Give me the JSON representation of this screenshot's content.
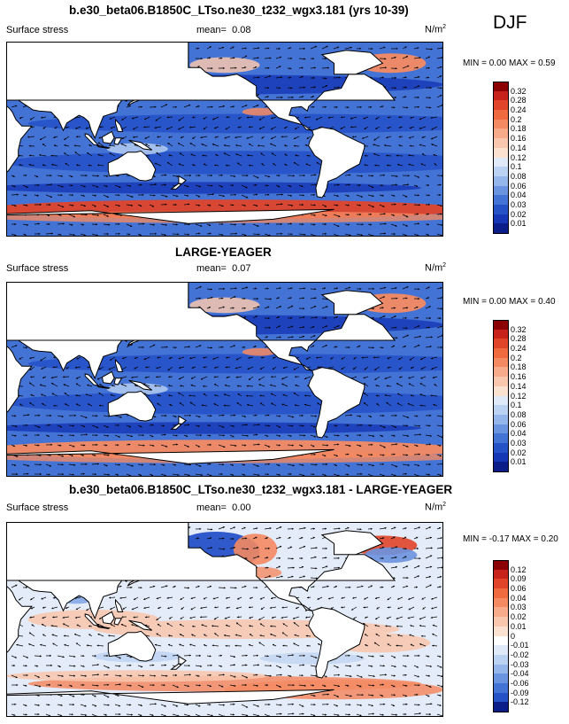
{
  "season": "DJF",
  "unit_base": "N/m",
  "unit_sup": "2",
  "chart_data": [
    {
      "type": "heatmap",
      "title": "b.e30_beta06.B1850C_LTso.ne30_t232_wgx3.181 (yrs 10-39)",
      "variable": "Surface stress",
      "mean_label": "mean=",
      "mean": "0.08",
      "min_label": "MIN =",
      "min": "0.00",
      "max_label": "MAX =",
      "max": "0.59",
      "levels": [
        "0.32",
        "0.28",
        "0.24",
        "0.2",
        "0.18",
        "0.16",
        "0.14",
        "0.12",
        "0.1",
        "0.08",
        "0.06",
        "0.04",
        "0.03",
        "0.02",
        "0.01"
      ],
      "colors": [
        "#8b0000",
        "#c8231a",
        "#e0452a",
        "#ef6a3e",
        "#f48a62",
        "#f7ab8a",
        "#f9c7ae",
        "#fbe2d0",
        "#dfe9f8",
        "#bcd2f2",
        "#94b6ea",
        "#6a94df",
        "#4473d6",
        "#2652c8",
        "#1536b5",
        "#0a1d88"
      ],
      "field": "mean_climatology"
    },
    {
      "type": "heatmap",
      "title": "LARGE-YEAGER",
      "variable": "Surface stress",
      "mean_label": "mean=",
      "mean": "0.07",
      "min_label": "MIN =",
      "min": "0.00",
      "max_label": "MAX =",
      "max": "0.40",
      "levels": [
        "0.32",
        "0.28",
        "0.24",
        "0.2",
        "0.18",
        "0.16",
        "0.14",
        "0.12",
        "0.1",
        "0.08",
        "0.06",
        "0.04",
        "0.03",
        "0.02",
        "0.01"
      ],
      "colors": [
        "#8b0000",
        "#c8231a",
        "#e0452a",
        "#ef6a3e",
        "#f48a62",
        "#f7ab8a",
        "#f9c7ae",
        "#fbe2d0",
        "#dfe9f8",
        "#bcd2f2",
        "#94b6ea",
        "#6a94df",
        "#4473d6",
        "#2652c8",
        "#1536b5",
        "#0a1d88"
      ],
      "field": "obs_climatology"
    },
    {
      "type": "heatmap",
      "title": "b.e30_beta06.B1850C_LTso.ne30_t232_wgx3.181 - LARGE-YEAGER",
      "variable": "Surface stress",
      "mean_label": "mean=",
      "mean": "0.00",
      "min_label": "MIN =",
      "min": "-0.17",
      "max_label": "MAX =",
      "max": "0.20",
      "levels": [
        "0.12",
        "0.09",
        "0.06",
        "0.04",
        "0.03",
        "0.02",
        "0.01",
        "0",
        "-0.01",
        "-0.02",
        "-0.03",
        "-0.04",
        "-0.06",
        "-0.09",
        "-0.12"
      ],
      "colors": [
        "#8b0000",
        "#c8231a",
        "#e0452a",
        "#ef6a3e",
        "#f48a62",
        "#f7ab8a",
        "#f9c7ae",
        "#fbe2d0",
        "#ffffff",
        "#dfe9f8",
        "#bcd2f2",
        "#94b6ea",
        "#6a94df",
        "#4473d6",
        "#2652c8",
        "#0a1d88"
      ],
      "field": "difference"
    }
  ]
}
